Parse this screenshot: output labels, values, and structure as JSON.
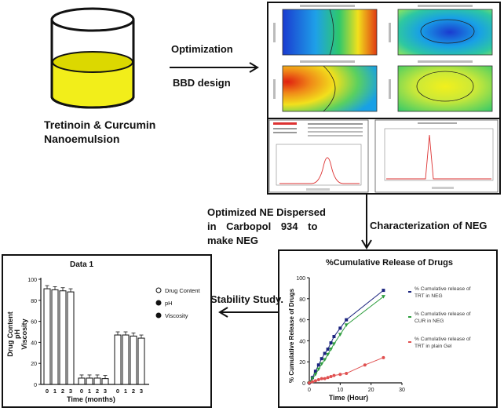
{
  "flow": {
    "beaker_label_line1": "Tretinoin & Curcumin",
    "beaker_label_line2": "Nanoemulsion",
    "step1_line1": "Optimization",
    "step1_line2": "BBD design",
    "step2_line1": "Optimized NE Dispersed",
    "step2_line2": "in Carbopol 934 to",
    "step2_line3": "make NEG",
    "step3": "Characterization of NEG",
    "step4": "Stability Study."
  },
  "colors": {
    "beaker_liquid": "#f2ee1a",
    "release_neg_trt": "#1a237e",
    "release_neg_cur": "#2e9e3e",
    "release_plain": "#e05050"
  },
  "chart_data": [
    {
      "type": "line",
      "title": "%Cumulative Release of Drugs",
      "xlabel": "Time (Hour)",
      "ylabel": "% Cumulative Release of Drugs",
      "xlim": [
        0,
        30
      ],
      "ylim": [
        0,
        100
      ],
      "xticks": [
        "0",
        "10",
        "20",
        "30"
      ],
      "yticks": [
        "0",
        "20",
        "40",
        "60",
        "80",
        "100"
      ],
      "legend_position": "right",
      "series": [
        {
          "name": "% Cumulative release of TRT in NEG",
          "x": [
            0,
            1,
            2,
            3,
            4,
            5,
            6,
            7,
            8,
            10,
            12,
            24
          ],
          "values": [
            0,
            5,
            11,
            17,
            23,
            28,
            32,
            38,
            44,
            52,
            60,
            88
          ]
        },
        {
          "name": "% Cumulative release of CUR in NEG",
          "x": [
            0,
            1,
            2,
            3,
            4,
            5,
            6,
            7,
            8,
            10,
            12,
            24
          ],
          "values": [
            0,
            4,
            8,
            13,
            18,
            22,
            27,
            32,
            37,
            46,
            55,
            82
          ]
        },
        {
          "name": "% Cumulative release of TRT in plain Gel",
          "x": [
            0,
            1,
            2,
            3,
            4,
            5,
            6,
            7,
            8,
            10,
            12,
            18,
            24
          ],
          "values": [
            0,
            1,
            2,
            3,
            4,
            4,
            5,
            6,
            7,
            8,
            9,
            17,
            24
          ]
        }
      ]
    },
    {
      "type": "bar",
      "title": "Data 1",
      "xlabel": "Time (months)",
      "ylabel_line1": "Drug Content",
      "ylabel_line2": "pH",
      "ylabel_line3": "Viscosity",
      "ylim": [
        0,
        100
      ],
      "yticks": [
        "0",
        "20",
        "40",
        "60",
        "80",
        "100"
      ],
      "categories": [
        "0",
        "1",
        "2",
        "3"
      ],
      "legend_position": "right",
      "series": [
        {
          "name": "Drug Content",
          "values": [
            91,
            90,
            89,
            88
          ]
        },
        {
          "name": "pH",
          "values": [
            6,
            6,
            6,
            5.5
          ]
        },
        {
          "name": "Viscosity",
          "values": [
            47,
            47,
            46,
            44
          ]
        }
      ]
    }
  ]
}
